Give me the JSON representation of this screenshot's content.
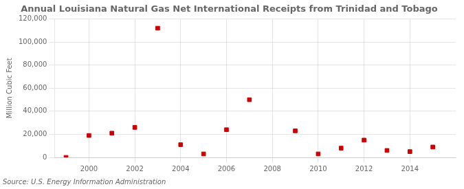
{
  "chart_data": {
    "type": "scatter",
    "title": "Annual Louisiana Natural Gas Net International Receipts from Trinidad and Tobago",
    "ylabel": "Million Cubic Feet",
    "annotation": "Source: U.S. Energy Information Administration",
    "x": [
      1999,
      2000,
      2001,
      2002,
      2003,
      2004,
      2005,
      2006,
      2007,
      2009,
      2010,
      2011,
      2012,
      2013,
      2014,
      2015
    ],
    "values": [
      0,
      19000,
      21000,
      26000,
      112000,
      11000,
      3000,
      24000,
      50000,
      23000,
      3000,
      8000,
      15000,
      6000,
      5000,
      9000
    ],
    "color": "#cc0000",
    "marker": "square",
    "xlim": [
      1998.5,
      2016
    ],
    "xticks": [
      2000,
      2002,
      2004,
      2006,
      2008,
      2010,
      2012,
      2014
    ],
    "ylim": [
      0,
      120000
    ],
    "yticks": [
      0,
      {
        "value": 20000,
        "label": "20,000"
      },
      {
        "value": 40000,
        "label": "40,000"
      },
      {
        "value": 60000,
        "label": "60,000"
      },
      {
        "value": 80000,
        "label": "80,000"
      },
      {
        "value": 100000,
        "label": "100,000"
      },
      {
        "value": 120000,
        "label": "120,000"
      }
    ],
    "grid": true
  }
}
